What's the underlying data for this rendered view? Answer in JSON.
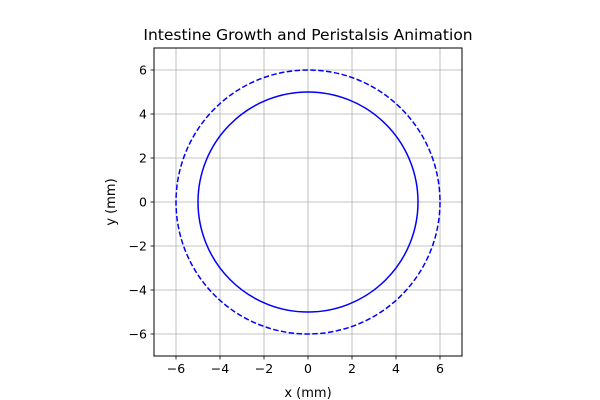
{
  "chart_data": {
    "type": "line",
    "title": "Intestine Growth and Peristalsis Animation",
    "xlabel": "x (mm)",
    "ylabel": "y (mm)",
    "xlim": [
      -7,
      7
    ],
    "ylim": [
      -7,
      7
    ],
    "x_ticks": [
      -6,
      -4,
      -2,
      0,
      2,
      4,
      6
    ],
    "y_ticks": [
      -6,
      -4,
      -2,
      0,
      2,
      4,
      6
    ],
    "x_tick_labels": [
      "−6",
      "−4",
      "−2",
      "0",
      "2",
      "4",
      "6"
    ],
    "y_tick_labels": [
      "−6",
      "−4",
      "−2",
      "0",
      "2",
      "4",
      "6"
    ],
    "grid": true,
    "aspect": "equal",
    "series": [
      {
        "shape": "circle",
        "center": [
          0,
          0
        ],
        "radius": 5,
        "style": "solid",
        "color": "#0000ff"
      },
      {
        "shape": "circle",
        "center": [
          0,
          0
        ],
        "radius": 6,
        "style": "dashed",
        "color": "#0000ff"
      }
    ]
  }
}
